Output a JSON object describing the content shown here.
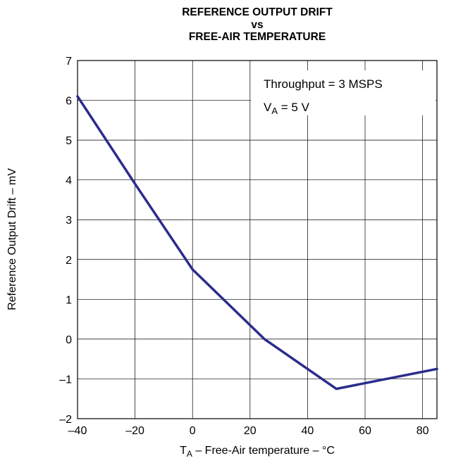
{
  "chart_data": {
    "type": "line",
    "title_lines": [
      "REFERENCE OUTPUT DRIFT",
      "vs",
      "FREE-AIR TEMPERATURE"
    ],
    "xlabel": {
      "main": "T",
      "sub": "A",
      "rest": " – Free-Air temperature – °C"
    },
    "ylabel": "Reference Output Drift – mV",
    "xlim": [
      -40,
      85
    ],
    "ylim": [
      -2,
      7
    ],
    "xticks": [
      -40,
      -20,
      0,
      20,
      40,
      60,
      80
    ],
    "xtick_labels": [
      "–40",
      "–20",
      "0",
      "20",
      "40",
      "60",
      "80"
    ],
    "yticks": [
      -2,
      -1,
      0,
      1,
      2,
      3,
      4,
      5,
      6,
      7
    ],
    "ytick_labels": [
      "–2",
      "–1",
      "0",
      "1",
      "2",
      "3",
      "4",
      "5",
      "6",
      "7"
    ],
    "grid": true,
    "annotation": {
      "line1": "Throughput = 3 MSPS",
      "line2_main": "V",
      "line2_sub": "A",
      "line2_rest": " = 5 V"
    },
    "series": [
      {
        "color": "#2b2b8c",
        "x": [
          -40,
          -20,
          0,
          25,
          50,
          85
        ],
        "y": [
          6.1,
          3.9,
          1.75,
          0.0,
          -1.25,
          -0.75
        ]
      }
    ]
  }
}
